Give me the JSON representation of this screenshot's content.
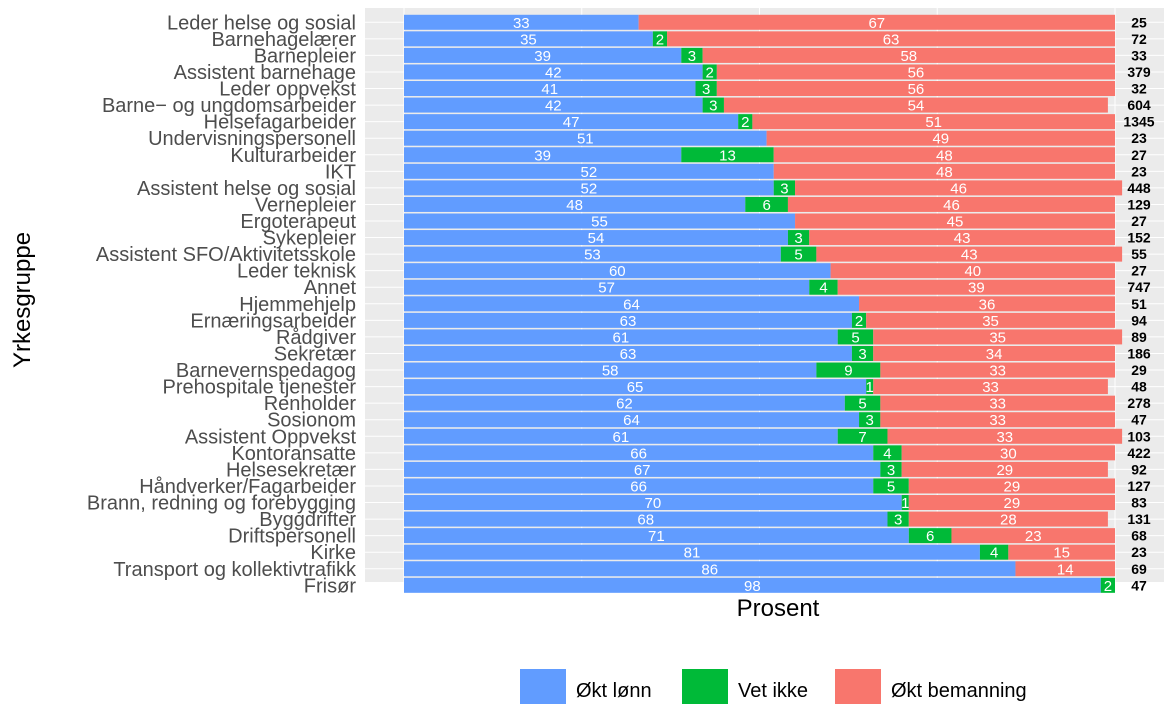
{
  "chart_data": {
    "type": "bar",
    "orientation": "horizontal",
    "stacked": true,
    "xlabel": "Prosent",
    "ylabel": "Yrkesgruppe",
    "xlim": [
      0,
      100
    ],
    "legend_position": "bottom",
    "categories": [
      "Leder helse og sosial",
      "Barnehagelærer",
      "Barnepleier",
      "Assistent barnehage",
      "Leder oppvekst",
      "Barne− og ungdomsarbeider",
      "Helsefagarbeider",
      "Undervisningspersonell",
      "Kulturarbeider",
      "IKT",
      "Assistent helse og sosial",
      "Vernepleier",
      "Ergoterapeut",
      "Sykepleier",
      "Assistent SFO/Aktivitetsskole",
      "Leder teknisk",
      "Annet",
      "Hjemmehjelp",
      "Ernæringsarbeider",
      "Rådgiver",
      "Sekretær",
      "Barnevernspedagog",
      "Prehospitale tjenester",
      "Renholder",
      "Sosionom",
      "Assistent Oppvekst",
      "Kontoransatte",
      "Helsesekretær",
      "Håndverker/Fagarbeider",
      "Brann, redning og forebygging",
      "Byggdrifter",
      "Driftspersonell",
      "Kirke",
      "Transport og kollektivtrafikk",
      "Frisør"
    ],
    "series": [
      {
        "name": "Økt lønn",
        "color": "#619CFF",
        "values": [
          33,
          35,
          39,
          42,
          41,
          42,
          47,
          51,
          39,
          52,
          52,
          48,
          55,
          54,
          53,
          60,
          57,
          64,
          63,
          61,
          63,
          58,
          65,
          62,
          64,
          61,
          66,
          67,
          66,
          70,
          68,
          71,
          81,
          86,
          98
        ]
      },
      {
        "name": "Vet ikke",
        "color": "#00BA38",
        "values": [
          0,
          2,
          3,
          2,
          3,
          3,
          2,
          0,
          13,
          0,
          3,
          6,
          0,
          3,
          5,
          0,
          4,
          0,
          2,
          5,
          3,
          9,
          1,
          5,
          3,
          7,
          4,
          3,
          5,
          1,
          3,
          6,
          4,
          0,
          2
        ]
      },
      {
        "name": "Økt bemanning",
        "color": "#F8766D",
        "values": [
          67,
          63,
          58,
          56,
          56,
          54,
          51,
          49,
          48,
          48,
          46,
          46,
          45,
          43,
          43,
          40,
          39,
          36,
          35,
          35,
          34,
          33,
          33,
          33,
          33,
          33,
          30,
          29,
          29,
          29,
          28,
          23,
          15,
          14,
          0
        ]
      }
    ],
    "n": [
      25,
      72,
      33,
      379,
      32,
      604,
      1345,
      23,
      27,
      23,
      448,
      129,
      27,
      152,
      55,
      27,
      747,
      51,
      94,
      89,
      186,
      29,
      48,
      278,
      47,
      103,
      422,
      92,
      127,
      83,
      131,
      68,
      23,
      69,
      47
    ]
  }
}
